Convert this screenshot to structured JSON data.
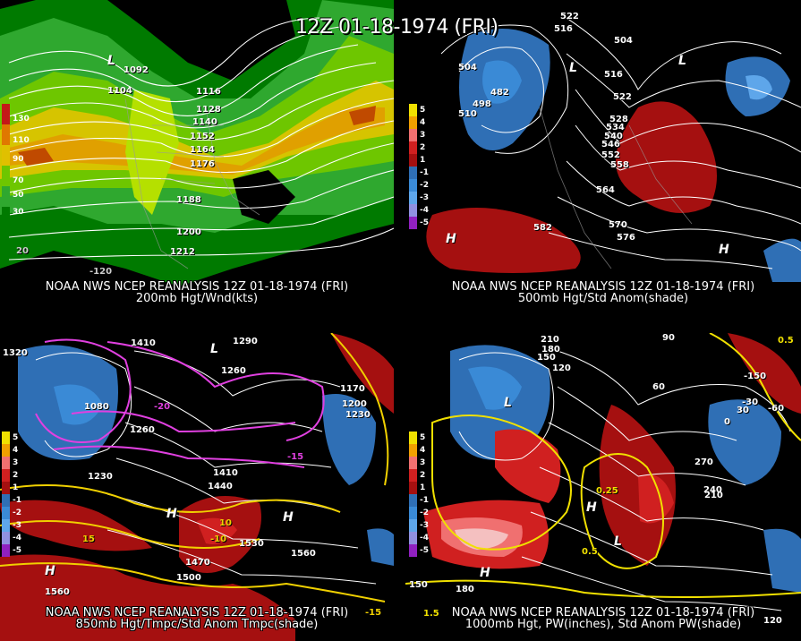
{
  "title": "12Z 01-18-1974 (FRI)",
  "panels": {
    "tl": {
      "caption_line1": "NOAA NWS NCEP REANALYSIS 12Z 01-18-1974 (FRI)",
      "caption_line2": "200mb Hgt/Wnd(kts)",
      "colorbar": [
        "130",
        "110",
        "90",
        "70",
        "50",
        "30"
      ],
      "contour_labels": [
        "1092",
        "1104",
        "1116",
        "1128",
        "1140",
        "1152",
        "1164",
        "1176",
        "1188",
        "1200",
        "1212"
      ],
      "lon_labels": [
        "-120",
        "20"
      ]
    },
    "tr": {
      "caption_line1": "NOAA NWS NCEP REANALYSIS 12Z 01-18-1974 (FRI)",
      "caption_line2": "500mb Hgt/Std Anom(shade)",
      "colorbar": [
        "5",
        "4",
        "3",
        "2",
        "1",
        "-1",
        "-2",
        "-3",
        "-4",
        "-5"
      ],
      "contour_labels": [
        "522",
        "516",
        "504",
        "504",
        "482",
        "498",
        "510",
        "516",
        "522",
        "528",
        "534",
        "540",
        "546",
        "552",
        "558",
        "564",
        "570",
        "576",
        "582"
      ]
    },
    "bl": {
      "caption_line1": "NOAA NWS NCEP REANALYSIS 12Z 01-18-1974 (FRI)",
      "caption_line2": "850mb Hgt/Tmpc/Std Anom Tmpc(shade)",
      "colorbar": [
        "5",
        "4",
        "3",
        "2",
        "1",
        "-1",
        "-2",
        "-3",
        "-4",
        "-5"
      ],
      "contour_labels": [
        "1320",
        "1410",
        "1290",
        "1260",
        "1170",
        "1200",
        "1230",
        "1080",
        "1260",
        "1230",
        "1410",
        "1440",
        "1530",
        "1470",
        "1500",
        "1560",
        "1560",
        "-20",
        "-15",
        "-10",
        "10",
        "15",
        "-15"
      ]
    },
    "br": {
      "caption_line1": "NOAA NWS NCEP REANALYSIS 12Z 01-18-1974 (FRI)",
      "caption_line2": "1000mb Hgt, PW(inches), Std Anom PW(shade)",
      "colorbar": [
        "5",
        "4",
        "3",
        "2",
        "1",
        "-1",
        "-2",
        "-3",
        "-4",
        "-5"
      ],
      "contour_labels": [
        "210",
        "180",
        "150",
        "120",
        "90",
        "60",
        "30",
        "0",
        "-30",
        "-60",
        "0.5",
        "0.25",
        "0.5",
        "1.5",
        "150",
        "180",
        "240",
        "210",
        "270",
        "-150",
        "120"
      ]
    }
  }
}
